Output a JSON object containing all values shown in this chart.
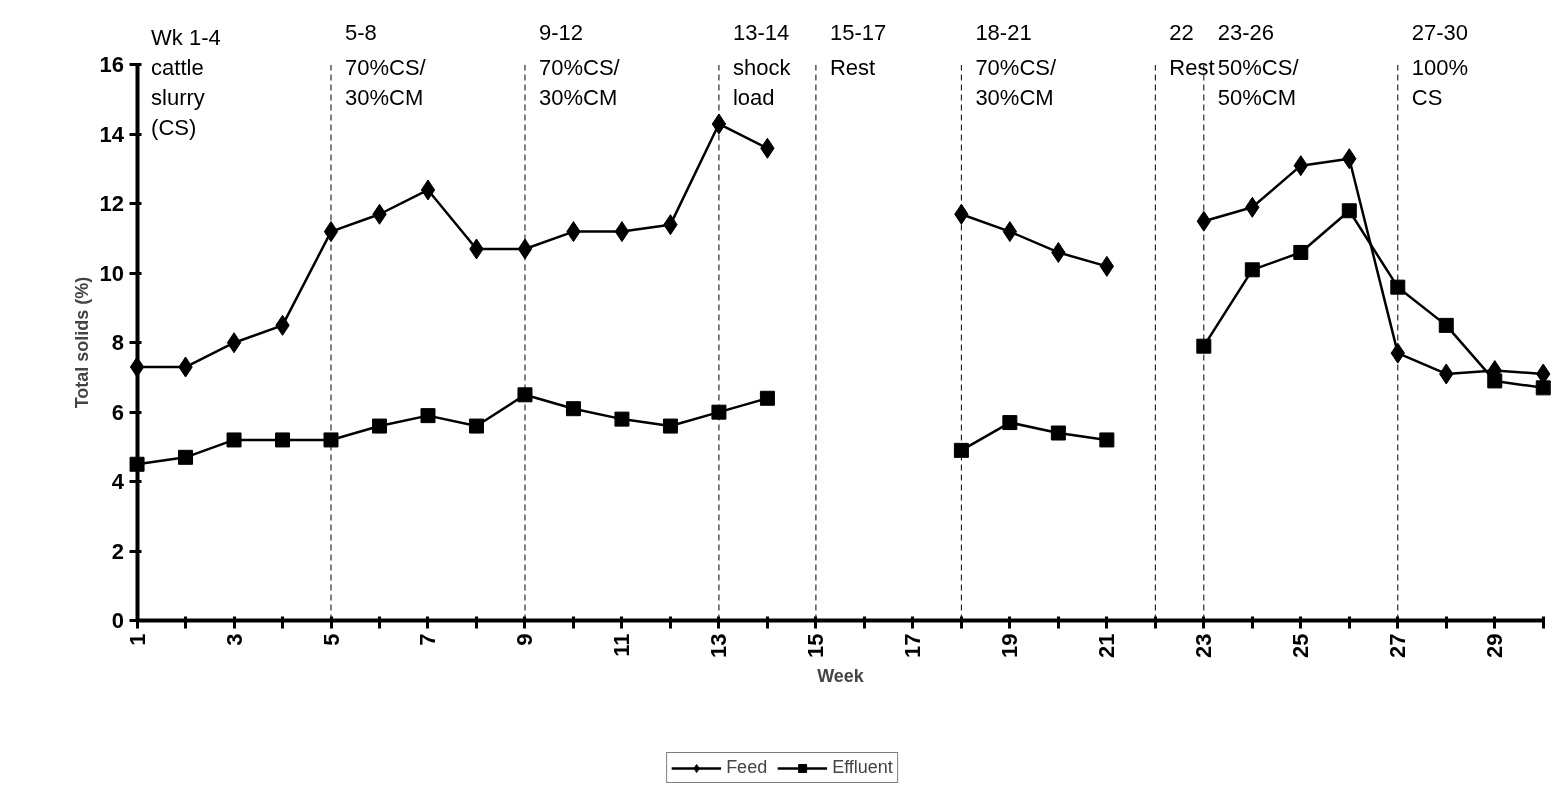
{
  "chart_data": {
    "type": "line",
    "xlabel": "Week",
    "ylabel": "Total solids (%)",
    "x": [
      1,
      2,
      3,
      4,
      5,
      6,
      7,
      8,
      9,
      10,
      11,
      12,
      13,
      14,
      15,
      16,
      17,
      18,
      19,
      20,
      21,
      22,
      23,
      24,
      25,
      26,
      27,
      28,
      29,
      30
    ],
    "xlim": [
      1,
      30
    ],
    "xticks": [
      1,
      {
        "value": 2,
        "label": null
      },
      3,
      {
        "value": 4,
        "label": null
      },
      5,
      {
        "value": 6,
        "label": null
      },
      7,
      {
        "value": 8,
        "label": null
      },
      9,
      {
        "value": 10,
        "label": null
      },
      11,
      {
        "value": 12,
        "label": null
      },
      13,
      {
        "value": 14,
        "label": null
      },
      15,
      {
        "value": 16,
        "label": null
      },
      17,
      {
        "value": 18,
        "label": null
      },
      19,
      {
        "value": 20,
        "label": null
      },
      21,
      {
        "value": 22,
        "label": null
      },
      23,
      {
        "value": 24,
        "label": null
      },
      25,
      {
        "value": 26,
        "label": null
      },
      27,
      {
        "value": 28,
        "label": null
      },
      29,
      {
        "value": 30,
        "label": null
      }
    ],
    "ylim": [
      0,
      16
    ],
    "yticks": [
      0,
      2,
      4,
      6,
      8,
      10,
      12,
      14,
      16
    ],
    "grid": false,
    "legend": "bottom",
    "series": [
      {
        "name": "Feed",
        "color": "#000000",
        "marker": "diamond",
        "values": [
          7.3,
          7.3,
          8.0,
          8.5,
          11.2,
          11.7,
          12.4,
          10.7,
          10.7,
          11.2,
          11.2,
          11.4,
          14.3,
          13.6,
          null,
          null,
          null,
          11.7,
          11.2,
          10.6,
          10.2,
          null,
          11.5,
          11.9,
          13.1,
          13.3,
          7.7,
          7.1,
          7.2,
          7.1
        ]
      },
      {
        "name": "Effluent",
        "color": "#000000",
        "marker": "square",
        "values": [
          4.5,
          4.7,
          5.2,
          5.2,
          5.2,
          5.6,
          5.9,
          5.6,
          6.5,
          6.1,
          5.8,
          5.6,
          6.0,
          6.4,
          null,
          null,
          null,
          4.9,
          5.7,
          5.4,
          5.2,
          null,
          7.9,
          10.1,
          10.6,
          11.8,
          9.6,
          8.5,
          6.9,
          6.7
        ]
      }
    ],
    "ref_lines": [
      {
        "axis": "x",
        "value": 5,
        "line_style": "dashed",
        "color": "#000000"
      },
      {
        "axis": "x",
        "value": 9,
        "line_style": "dashed",
        "color": "#000000"
      },
      {
        "axis": "x",
        "value": 13,
        "line_style": "dashed",
        "color": "#000000"
      },
      {
        "axis": "x",
        "value": 15,
        "line_style": "dashed",
        "color": "#000000"
      },
      {
        "axis": "x",
        "value": 18,
        "line_style": "dashed",
        "color": "#000000"
      },
      {
        "axis": "x",
        "value": 22,
        "line_style": "dashed",
        "color": "#000000"
      },
      {
        "axis": "x",
        "value": 23,
        "line_style": "dashed",
        "color": "#000000"
      },
      {
        "axis": "x",
        "value": 27,
        "line_style": "dashed",
        "color": "#000000"
      }
    ],
    "annotations": [
      "Wk 1-4 cattle slurry (CS)",
      {
        "text": "5-8 70%CS/ 30%CM",
        "x": 5,
        "y": 16
      },
      {
        "text": "9-12 70%CS/ 30%CM",
        "x": 9,
        "y": 16
      },
      {
        "text": "13-14 shock load",
        "x": 13,
        "y": 16
      },
      {
        "text": "15-17 Rest",
        "x": 15,
        "y": 16
      },
      {
        "text": "18-21 70%CS/ 30%CM",
        "x": 18,
        "y": 16
      },
      {
        "text": "22 Rest",
        "x": 22,
        "y": 16
      },
      {
        "text": "23-26 50%CS/ 50%CM",
        "x": 23,
        "y": 16
      },
      {
        "text": "27-30 100% CS",
        "x": 27,
        "y": 16
      }
    ]
  }
}
